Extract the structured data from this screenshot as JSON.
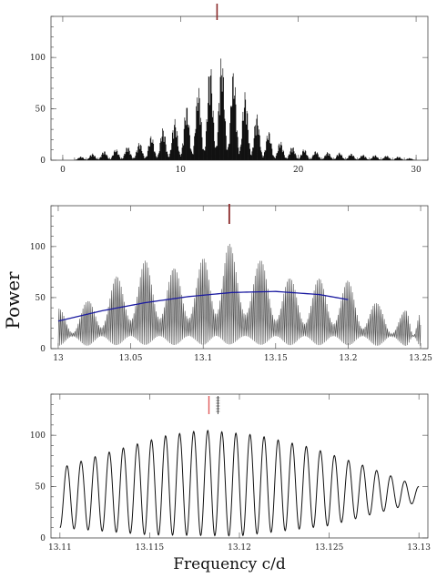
{
  "figure": {
    "ylabel": "Power",
    "xlabel": "Frequency c/d"
  },
  "colors": {
    "top_spectrum": "#111111",
    "middle_spectrum": "#555555",
    "bottom_curve": "#111111",
    "envelope_fit": "#1a1aa0",
    "peak_marker": "#8b2a2a",
    "bottom_marker": "#e05a5a"
  },
  "chart_data": [
    {
      "type": "line",
      "description_of_content": "periodogram overview",
      "xlim": [
        -1,
        31
      ],
      "ylim": [
        0,
        140
      ],
      "xticks": [
        0,
        10,
        20,
        30
      ],
      "yticks": [
        0,
        50,
        100
      ],
      "minor_x_step": 1,
      "minor_y_step": 10,
      "peak_marker_x": 13.1,
      "x": [
        1,
        2,
        3,
        4,
        5,
        6,
        7,
        8,
        9,
        10,
        11,
        12,
        13,
        14,
        15,
        16,
        17,
        18,
        19,
        20,
        21,
        22,
        23,
        24,
        25,
        26,
        27,
        28,
        29,
        30
      ],
      "peak_power": [
        2,
        5,
        8,
        10,
        12,
        15,
        20,
        28,
        35,
        45,
        62,
        82,
        108,
        98,
        78,
        55,
        35,
        22,
        15,
        12,
        10,
        8,
        8,
        7,
        6,
        5,
        5,
        4,
        3,
        1
      ]
    },
    {
      "type": "line",
      "description_of_content": "zoom on main peak with envelope fit",
      "xlim": [
        12.995,
        13.255
      ],
      "ylim": [
        0,
        140
      ],
      "xticks": [
        13,
        13.05,
        13.1,
        13.15,
        13.2,
        13.25
      ],
      "xtick_labels": [
        "13",
        "13.05",
        "13.1",
        "13.15",
        "13.2",
        "13.25"
      ],
      "yticks": [
        0,
        50,
        100
      ],
      "peak_marker_x": 13.118,
      "lobe_centers": [
        13.0,
        13.02,
        13.04,
        13.06,
        13.08,
        13.1,
        13.118,
        13.14,
        13.16,
        13.18,
        13.2,
        13.22,
        13.24,
        13.25
      ],
      "lobe_peaks": [
        40,
        47,
        72,
        88,
        80,
        90,
        105,
        88,
        70,
        70,
        68,
        45,
        38,
        35
      ],
      "envelope_fit": {
        "x": [
          13.0,
          13.03,
          13.06,
          13.09,
          13.12,
          13.15,
          13.18,
          13.2
        ],
        "y": [
          27,
          37,
          45,
          51,
          55,
          56,
          53,
          48
        ]
      }
    },
    {
      "type": "line",
      "description_of_content": "oscillating power near main peak",
      "xlim": [
        13.1095,
        13.1305
      ],
      "ylim": [
        0,
        140
      ],
      "xticks": [
        13.11,
        13.115,
        13.12,
        13.125,
        13.13
      ],
      "xtick_labels": [
        "13.11",
        "13.115",
        "13.12",
        "13.125",
        "13.13"
      ],
      "yticks": [
        0,
        50,
        100
      ],
      "marker_x": 13.1183,
      "hatched_marker_x": 13.1188,
      "n_oscillations": 26,
      "envelope": {
        "x": [
          13.11,
          13.113,
          13.116,
          13.118,
          13.121,
          13.124,
          13.127,
          13.13
        ],
        "y": [
          68,
          85,
          100,
          105,
          100,
          88,
          70,
          50
        ]
      },
      "minima": {
        "x": [
          13.11,
          13.115,
          13.12,
          13.125,
          13.13
        ],
        "y": [
          10,
          3,
          2,
          12,
          35
        ]
      }
    }
  ]
}
